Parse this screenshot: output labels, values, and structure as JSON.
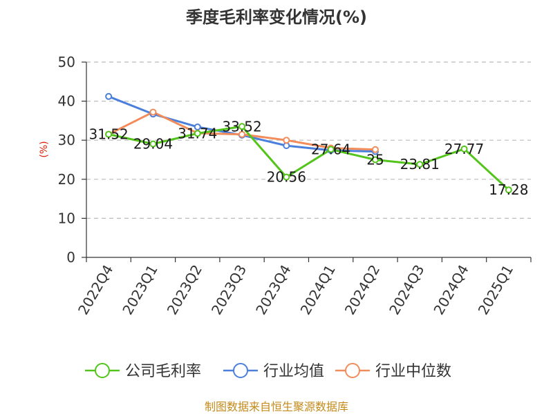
{
  "chart_data": {
    "type": "line",
    "title": "季度毛利率变化情况(%)",
    "ylabel": "(%)",
    "xlabel": "",
    "ylim": [
      0,
      50
    ],
    "yticks": [
      0,
      10,
      20,
      30,
      40,
      50
    ],
    "grid": true,
    "legend_position": "bottom",
    "categories": [
      "2022Q4",
      "2023Q1",
      "2023Q2",
      "2023Q3",
      "2023Q4",
      "2024Q1",
      "2024Q2",
      "2024Q3",
      "2024Q4",
      "2025Q1"
    ],
    "series": [
      {
        "name": "公司毛利率",
        "color": "#52c41a",
        "values": [
          31.52,
          29.04,
          31.74,
          33.52,
          20.56,
          27.64,
          25,
          23.81,
          27.77,
          17.28
        ],
        "labels": [
          "31.52",
          "29.04",
          "31.74",
          "33.52",
          "20.56",
          "27.64",
          "25",
          "23.81",
          "27.77",
          "17.28"
        ]
      },
      {
        "name": "行业均值",
        "color": "#4a7fdc",
        "values": [
          41.2,
          36.7,
          33.4,
          31.3,
          28.6,
          27.4,
          27.1,
          null,
          null,
          null
        ]
      },
      {
        "name": "行业中位数",
        "color": "#f28c5a",
        "values": [
          31.5,
          37.2,
          31.8,
          31.5,
          30.0,
          28.0,
          27.6,
          null,
          null,
          null
        ]
      }
    ],
    "source": "制图数据来自恒生聚源数据库"
  }
}
